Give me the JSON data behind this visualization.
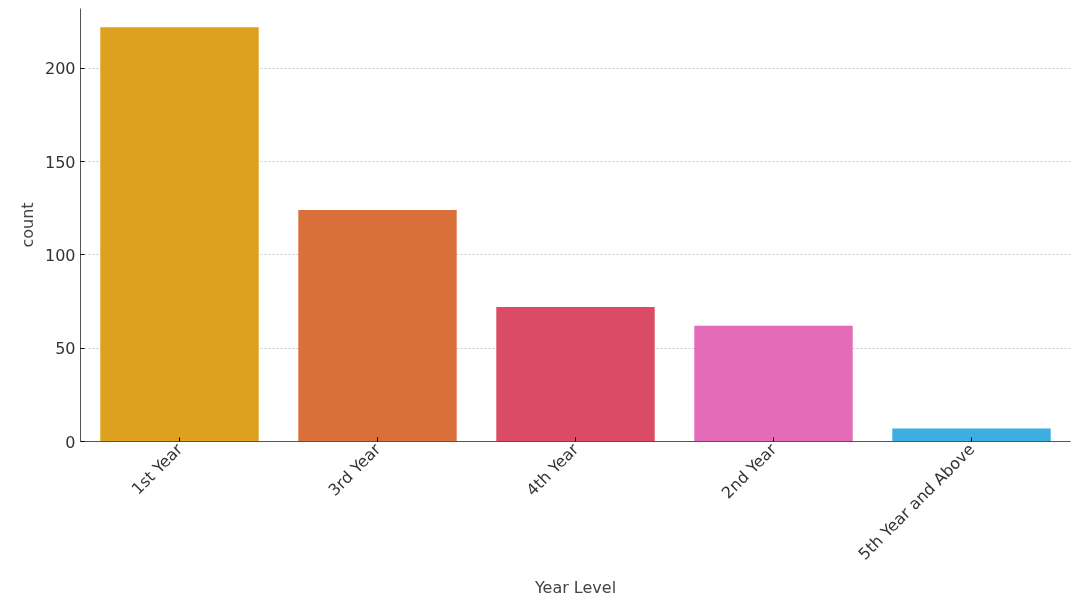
{
  "chart_data": {
    "type": "bar",
    "xlabel": "Year Level",
    "ylabel": "count",
    "categories": [
      "1st Year",
      "3rd Year",
      "4th Year",
      "2nd Year",
      "5th Year and Above"
    ],
    "values": [
      222,
      124,
      72,
      62,
      7
    ],
    "colors": [
      "#dea11f",
      "#d9703a",
      "#db4b66",
      "#e36bb8",
      "#3caee0"
    ],
    "ylim": [
      0,
      232
    ],
    "yticks": [
      0,
      50,
      100,
      150,
      200
    ],
    "grid": "y"
  }
}
